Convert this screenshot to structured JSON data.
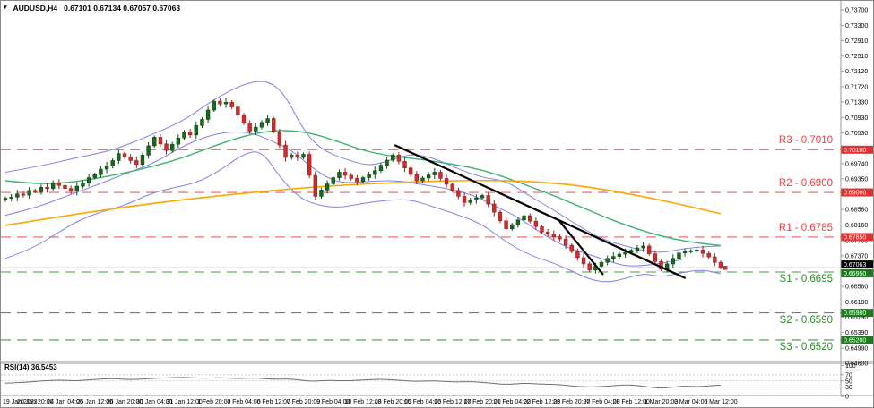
{
  "window": {
    "symbol": "AUDUSD,H4",
    "quotes": "0.67101 0.67134 0.67057 0.67063"
  },
  "colors": {
    "background": "#ffffff",
    "border": "#9a9a9a",
    "candle_up": "#17691d",
    "candle_up_stroke": "#0d4a12",
    "candle_down": "#cc2e2e",
    "candle_down_stroke": "#9e1f1f",
    "bollinger": "#8181e8",
    "ma_fast": "#3cb371",
    "ma_slow": "#ffa500",
    "resistance": "#fa5a5a",
    "support": "#3f9f3f",
    "trendline": "#000000",
    "close_line": "#c0c0c0",
    "rsi_line": "#6e6e6e",
    "axis_text": "#000000",
    "box_text": "#ffffff",
    "res_box_bg": "#e03232",
    "sup_box_bg": "#1e7a1e",
    "close_box_bg": "#000000",
    "grid_dotted": "#aaaaaa"
  },
  "sr_levels": [
    {
      "name": "R3",
      "label": "R3 - 0.7010",
      "price": 0.701,
      "kind": "resistance",
      "axis_box": "0.70100"
    },
    {
      "name": "R2",
      "label": "R2 - 0.6900",
      "price": 0.69,
      "kind": "resistance",
      "axis_box": "0.69000"
    },
    {
      "name": "R1",
      "label": "R1 - 0.6785",
      "price": 0.6785,
      "kind": "resistance",
      "axis_box": "0.67850"
    },
    {
      "name": "S1",
      "label": "S1 - 0.6695",
      "price": 0.6695,
      "kind": "support",
      "axis_box": "0.66950"
    },
    {
      "name": "S2",
      "label": "S2 - 0.6590",
      "price": 0.659,
      "kind": "support",
      "axis_box": "0.65900"
    },
    {
      "name": "S3",
      "label": "S3 - 0.6520",
      "price": 0.652,
      "kind": "support",
      "axis_box": "0.65200"
    }
  ],
  "current_price": {
    "value": 0.67063,
    "axis_box": "0.67063"
  },
  "price_axis": {
    "ticks": [
      {
        "label": "0.73700",
        "price": 0.737
      },
      {
        "label": "0.73300",
        "price": 0.733
      },
      {
        "label": "0.72910",
        "price": 0.7291
      },
      {
        "label": "0.72510",
        "price": 0.7251
      },
      {
        "label": "0.72120",
        "price": 0.7212
      },
      {
        "label": "0.71720",
        "price": 0.7172
      },
      {
        "label": "0.71330",
        "price": 0.7133
      },
      {
        "label": "0.70930",
        "price": 0.7093
      },
      {
        "label": "0.70530",
        "price": 0.7053
      },
      {
        "label": "0.69740",
        "price": 0.6974
      },
      {
        "label": "0.69350",
        "price": 0.6935
      },
      {
        "label": "0.68960",
        "price": 0.6896
      },
      {
        "label": "0.68560",
        "price": 0.6856
      },
      {
        "label": "0.68160",
        "price": 0.6816
      },
      {
        "label": "0.67760",
        "price": 0.6776
      },
      {
        "label": "0.67370",
        "price": 0.6737
      },
      {
        "label": "0.66580",
        "price": 0.6658
      },
      {
        "label": "0.66180",
        "price": 0.6618
      },
      {
        "label": "0.65790",
        "price": 0.6579
      },
      {
        "label": "0.65390",
        "price": 0.6539
      },
      {
        "label": "0.64990",
        "price": 0.6499
      },
      {
        "label": "0.64600",
        "price": 0.646
      }
    ]
  },
  "time_axis": {
    "labels": [
      "19 Jan 2023",
      "20 Jan 20:00",
      "24 Jan 04:00",
      "25 Jan 12:00",
      "26 Jan 20:00",
      "30 Jan 04:00",
      "31 Jan 12:00",
      "1 Feb 20:00",
      "3 Feb 04:00",
      "6 Feb 12:00",
      "7 Feb 20:00",
      "9 Feb 04:00",
      "10 Feb 12:00",
      "13 Feb 20:00",
      "15 Feb 04:00",
      "16 Feb 12:00",
      "17 Feb 20:00",
      "21 Feb 04:00",
      "22 Feb 12:00",
      "23 Feb 20:00",
      "27 Feb 04:00",
      "28 Feb 12:00",
      "1 Mar 20:00",
      "3 Mar 04:00",
      "6 Mar 12:00"
    ]
  },
  "rsi": {
    "label": "RSI(14) 36.5453",
    "period": 14,
    "value": 36.5453,
    "scale_labels": [
      100,
      70,
      50,
      30,
      0
    ],
    "series": [
      [
        0,
        43
      ],
      [
        3,
        45
      ],
      [
        6,
        50
      ],
      [
        9,
        53
      ],
      [
        12,
        50
      ],
      [
        15,
        55
      ],
      [
        18,
        58
      ],
      [
        21,
        54
      ],
      [
        24,
        57
      ],
      [
        27,
        60
      ],
      [
        30,
        62
      ],
      [
        33,
        58
      ],
      [
        36,
        61
      ],
      [
        39,
        57
      ],
      [
        42,
        60
      ],
      [
        45,
        55
      ],
      [
        48,
        57
      ],
      [
        51,
        48
      ],
      [
        54,
        52
      ],
      [
        57,
        50
      ],
      [
        60,
        53
      ],
      [
        63,
        56
      ],
      [
        66,
        52
      ],
      [
        69,
        48
      ],
      [
        72,
        51
      ],
      [
        75,
        46
      ],
      [
        78,
        48
      ],
      [
        81,
        44
      ],
      [
        84,
        38
      ],
      [
        87,
        43
      ],
      [
        90,
        40
      ],
      [
        93,
        38
      ],
      [
        96,
        32
      ],
      [
        99,
        30
      ],
      [
        102,
        35
      ],
      [
        105,
        38
      ],
      [
        108,
        30
      ],
      [
        110,
        26
      ],
      [
        112,
        30
      ],
      [
        114,
        34
      ],
      [
        116,
        31
      ],
      [
        118,
        34
      ],
      [
        120,
        36.5
      ]
    ]
  },
  "chart_data": {
    "type": "candlestick",
    "symbol": "AUDUSD",
    "timeframe": "H4",
    "title": "AUDUSD,H4",
    "ylim": [
      0.646,
      0.736
    ],
    "grid": false,
    "bars": {
      "count": 121,
      "first_open": 0.688,
      "wick": 0.00045,
      "closes": [
        0.6885,
        0.6888,
        0.6896,
        0.6893,
        0.6905,
        0.6902,
        0.6913,
        0.691,
        0.6925,
        0.6918,
        0.691,
        0.6903,
        0.6916,
        0.6924,
        0.6938,
        0.6946,
        0.696,
        0.6968,
        0.6982,
        0.7,
        0.6991,
        0.6982,
        0.6972,
        0.6996,
        0.702,
        0.7042,
        0.7025,
        0.7008,
        0.7024,
        0.704,
        0.7056,
        0.7048,
        0.7072,
        0.7088,
        0.7112,
        0.7135,
        0.7128,
        0.7132,
        0.712,
        0.71,
        0.7078,
        0.7058,
        0.7068,
        0.708,
        0.709,
        0.7056,
        0.7022,
        0.699,
        0.6996,
        0.699,
        0.6998,
        0.6944,
        0.689,
        0.6906,
        0.6922,
        0.6938,
        0.6952,
        0.6944,
        0.6936,
        0.6928,
        0.6938,
        0.6946,
        0.6956,
        0.697,
        0.6983,
        0.6996,
        0.698,
        0.6963,
        0.6946,
        0.693,
        0.6937,
        0.6945,
        0.6952,
        0.6936,
        0.6921,
        0.6905,
        0.689,
        0.6874,
        0.688,
        0.6886,
        0.6892,
        0.687,
        0.6849,
        0.6827,
        0.6806,
        0.6817,
        0.6829,
        0.684,
        0.6826,
        0.6812,
        0.6798,
        0.6792,
        0.6786,
        0.678,
        0.6764,
        0.6748,
        0.6732,
        0.6716,
        0.67,
        0.671,
        0.672,
        0.673,
        0.6735,
        0.6741,
        0.6746,
        0.6751,
        0.6757,
        0.6762,
        0.6742,
        0.6722,
        0.6702,
        0.6716,
        0.673,
        0.6744,
        0.6747,
        0.675,
        0.6752,
        0.6743,
        0.6734,
        0.672,
        0.67063
      ]
    },
    "overlays": {
      "bollinger_upper": [
        [
          0,
          0.6952
        ],
        [
          6,
          0.6968
        ],
        [
          12,
          0.699
        ],
        [
          18,
          0.7008
        ],
        [
          24,
          0.7045
        ],
        [
          30,
          0.7085
        ],
        [
          35,
          0.714
        ],
        [
          40,
          0.718
        ],
        [
          44,
          0.719
        ],
        [
          47,
          0.715
        ],
        [
          50,
          0.706
        ],
        [
          53,
          0.701
        ],
        [
          57,
          0.6985
        ],
        [
          61,
          0.6968
        ],
        [
          64,
          0.698
        ],
        [
          68,
          0.7
        ],
        [
          72,
          0.6988
        ],
        [
          76,
          0.696
        ],
        [
          80,
          0.6938
        ],
        [
          84,
          0.693
        ],
        [
          88,
          0.689
        ],
        [
          92,
          0.6855
        ],
        [
          96,
          0.6815
        ],
        [
          100,
          0.678
        ],
        [
          104,
          0.6762
        ],
        [
          107,
          0.675
        ],
        [
          110,
          0.6744
        ],
        [
          114,
          0.6756
        ],
        [
          117,
          0.676
        ],
        [
          120,
          0.6762
        ]
      ],
      "bollinger_lower": [
        [
          0,
          0.673
        ],
        [
          4,
          0.6752
        ],
        [
          8,
          0.6788
        ],
        [
          12,
          0.6826
        ],
        [
          16,
          0.685
        ],
        [
          20,
          0.6866
        ],
        [
          24,
          0.6895
        ],
        [
          28,
          0.6912
        ],
        [
          32,
          0.6924
        ],
        [
          36,
          0.6956
        ],
        [
          40,
          0.7
        ],
        [
          43,
          0.7008
        ],
        [
          46,
          0.694
        ],
        [
          49,
          0.689
        ],
        [
          52,
          0.6868
        ],
        [
          56,
          0.686
        ],
        [
          60,
          0.6872
        ],
        [
          64,
          0.688
        ],
        [
          68,
          0.6882
        ],
        [
          72,
          0.6862
        ],
        [
          76,
          0.6842
        ],
        [
          80,
          0.6818
        ],
        [
          84,
          0.6772
        ],
        [
          88,
          0.6738
        ],
        [
          92,
          0.6718
        ],
        [
          95,
          0.6698
        ],
        [
          98,
          0.6676
        ],
        [
          101,
          0.6668
        ],
        [
          104,
          0.6678
        ],
        [
          107,
          0.6692
        ],
        [
          110,
          0.6682
        ],
        [
          113,
          0.6692
        ],
        [
          116,
          0.67
        ],
        [
          118,
          0.6698
        ],
        [
          120,
          0.669
        ]
      ],
      "ma_fast_green": [
        [
          0,
          0.693
        ],
        [
          5,
          0.6922
        ],
        [
          10,
          0.6924
        ],
        [
          15,
          0.6935
        ],
        [
          20,
          0.695
        ],
        [
          25,
          0.6968
        ],
        [
          30,
          0.699
        ],
        [
          35,
          0.702
        ],
        [
          40,
          0.7045
        ],
        [
          44,
          0.7058
        ],
        [
          48,
          0.706
        ],
        [
          52,
          0.705
        ],
        [
          56,
          0.703
        ],
        [
          60,
          0.7008
        ],
        [
          64,
          0.6995
        ],
        [
          68,
          0.6988
        ],
        [
          72,
          0.698
        ],
        [
          76,
          0.697
        ],
        [
          80,
          0.6958
        ],
        [
          84,
          0.6938
        ],
        [
          88,
          0.6915
        ],
        [
          92,
          0.6892
        ],
        [
          96,
          0.6866
        ],
        [
          100,
          0.684
        ],
        [
          104,
          0.6816
        ],
        [
          108,
          0.6796
        ],
        [
          112,
          0.678
        ],
        [
          116,
          0.677
        ],
        [
          120,
          0.6763
        ]
      ],
      "ma_slow_orange": [
        [
          0,
          0.6815
        ],
        [
          10,
          0.684
        ],
        [
          20,
          0.6862
        ],
        [
          30,
          0.6882
        ],
        [
          40,
          0.6898
        ],
        [
          50,
          0.6912
        ],
        [
          60,
          0.6922
        ],
        [
          70,
          0.6928
        ],
        [
          78,
          0.6931
        ],
        [
          86,
          0.693
        ],
        [
          92,
          0.6924
        ],
        [
          98,
          0.6914
        ],
        [
          104,
          0.6898
        ],
        [
          110,
          0.688
        ],
        [
          115,
          0.6863
        ],
        [
          120,
          0.6845
        ]
      ]
    },
    "trendlines": [
      {
        "from_bar": 65.3,
        "from_price": 0.7022,
        "to_bar": 114.1,
        "to_price": 0.6679
      },
      {
        "from_bar": 92.8,
        "from_price": 0.6829,
        "to_bar": 100.3,
        "to_price": 0.6688
      }
    ]
  }
}
